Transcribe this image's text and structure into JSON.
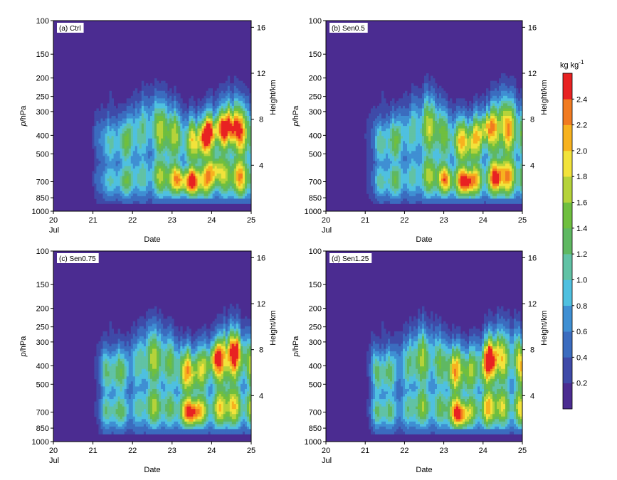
{
  "colorbar": {
    "unit": "kg kg",
    "unit_sup": "-1",
    "ticks": [
      "0.2",
      "0.4",
      "0.6",
      "0.8",
      "1.0",
      "1.2",
      "1.4",
      "1.6",
      "1.8",
      "2.0",
      "2.2",
      "2.4"
    ],
    "levels": [
      "#4b2c91",
      "#3f4aa8",
      "#3b6cbf",
      "#3f8fd3",
      "#4fc0e0",
      "#61c2a5",
      "#5fb862",
      "#6fbf3f",
      "#b5d33a",
      "#f2e33b",
      "#f7b21f",
      "#f17b21",
      "#e82222"
    ]
  },
  "chart_data": [
    {
      "type": "heatmap",
      "title": "(a) Ctrl",
      "xlabel": "Date",
      "ylabel_italic": "p",
      "ylabel_rest": "/hPa",
      "y2label": "Height/km",
      "xticks": [
        "20",
        "21",
        "22",
        "23",
        "24",
        "25"
      ],
      "xtick_sub": "Jul",
      "xlim": [
        20,
        25
      ],
      "yticks": [
        "100",
        "150",
        "200",
        "250",
        "300",
        "400",
        "500",
        "700",
        "850",
        "1000"
      ],
      "ylim": [
        1000,
        100
      ],
      "y_scale": "log",
      "y2ticks": [
        "4",
        "8",
        "12",
        "16"
      ],
      "variant": 0
    },
    {
      "type": "heatmap",
      "title": "(b) Sen0.5",
      "xlabel": "Date",
      "ylabel_italic": "p",
      "ylabel_rest": "/hPa",
      "y2label": "Height/km",
      "xticks": [
        "20",
        "21",
        "22",
        "23",
        "24",
        "25"
      ],
      "xtick_sub": "Jul",
      "xlim": [
        20,
        25
      ],
      "yticks": [
        "100",
        "150",
        "200",
        "250",
        "300",
        "400",
        "500",
        "700",
        "850",
        "1000"
      ],
      "ylim": [
        1000,
        100
      ],
      "y_scale": "log",
      "y2ticks": [
        "4",
        "8",
        "12",
        "16"
      ],
      "variant": 1
    },
    {
      "type": "heatmap",
      "title": "(c) Sen0.75",
      "xlabel": "Date",
      "ylabel_italic": "p",
      "ylabel_rest": "/hPa",
      "y2label": "Height/km",
      "xticks": [
        "20",
        "21",
        "22",
        "23",
        "24",
        "25"
      ],
      "xtick_sub": "Jul",
      "xlim": [
        20,
        25
      ],
      "yticks": [
        "100",
        "150",
        "200",
        "250",
        "300",
        "400",
        "500",
        "700",
        "850",
        "1000"
      ],
      "ylim": [
        1000,
        100
      ],
      "y_scale": "log",
      "y2ticks": [
        "4",
        "8",
        "12",
        "16"
      ],
      "variant": 2
    },
    {
      "type": "heatmap",
      "title": "(d) Sen1.25",
      "xlabel": "Date",
      "ylabel_italic": "p",
      "ylabel_rest": "/hPa",
      "y2label": "Height/km",
      "xticks": [
        "20",
        "21",
        "22",
        "23",
        "24",
        "25"
      ],
      "xtick_sub": "Jul",
      "xlim": [
        20,
        25
      ],
      "yticks": [
        "100",
        "150",
        "200",
        "250",
        "300",
        "400",
        "500",
        "700",
        "850",
        "1000"
      ],
      "ylim": [
        1000,
        100
      ],
      "y_scale": "log",
      "y2ticks": [
        "4",
        "8",
        "12",
        "16"
      ],
      "variant": 3
    }
  ]
}
